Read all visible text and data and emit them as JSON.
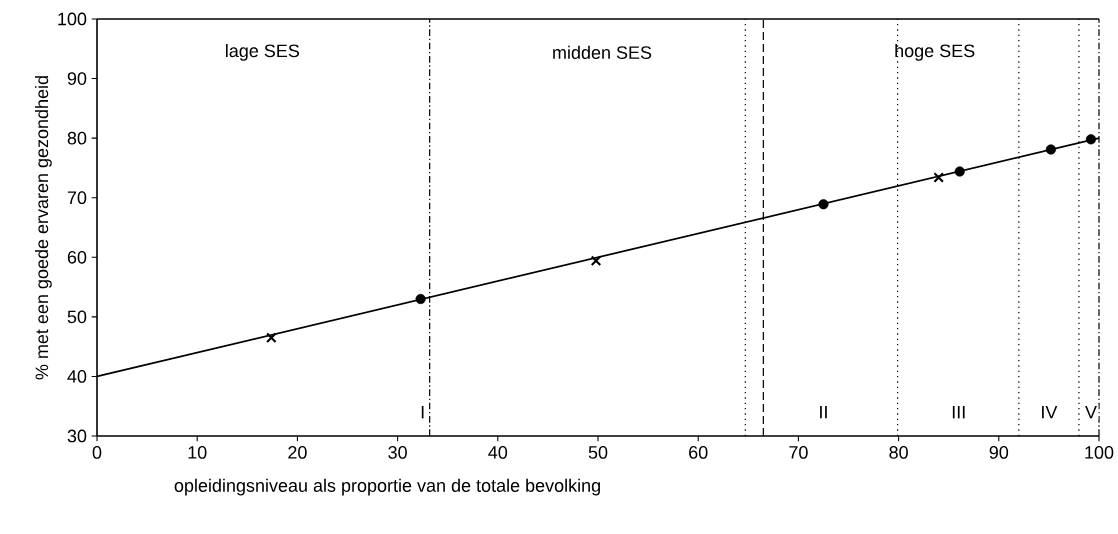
{
  "chart_data": {
    "type": "scatter",
    "xlabel": "opleidingsniveau als proportie van de totale bevolking",
    "ylabel": "% met een goede ervaren gezondheid",
    "xlim": [
      0,
      100
    ],
    "ylim": [
      30,
      100
    ],
    "xticks": [
      0,
      10,
      20,
      30,
      40,
      50,
      60,
      70,
      80,
      90,
      100
    ],
    "yticks": [
      30,
      40,
      50,
      60,
      70,
      80,
      90,
      100
    ],
    "grid": false,
    "series": [
      {
        "type": "line",
        "color": "#000000",
        "marker": "none",
        "line_style": "solid",
        "x": [
          0,
          100
        ],
        "values": [
          40,
          80
        ]
      },
      {
        "color": "#000000",
        "marker": "circle",
        "x": [
          32.3,
          72.5,
          86.1,
          95.2,
          99.2
        ],
        "values": [
          53.0,
          68.9,
          74.4,
          78.1,
          79.8
        ]
      },
      {
        "color": "#000000",
        "marker": "cross",
        "x": [
          17.4,
          49.8,
          84.0
        ],
        "values": [
          46.5,
          59.4,
          73.4
        ]
      }
    ],
    "ref_lines": [
      {
        "axis": "x",
        "value": 33.2,
        "line_style": "dashdot"
      },
      {
        "axis": "x",
        "value": 64.7,
        "line_style": "dotted"
      },
      {
        "axis": "x",
        "value": 66.5,
        "line_style": "dashed"
      },
      {
        "axis": "x",
        "value": 79.9,
        "line_style": "dotted"
      },
      {
        "axis": "x",
        "value": 92,
        "line_style": "dotted"
      },
      {
        "axis": "x",
        "value": 98,
        "line_style": "dotted"
      }
    ],
    "annotations": [
      "lage SES",
      "midden SES",
      "hoge SES",
      {
        "text": "I",
        "x": 32.5,
        "y": 34
      },
      {
        "text": "II",
        "x": 72.5,
        "y": 34
      },
      {
        "text": "III",
        "x": 86,
        "y": 34
      },
      {
        "text": "IV",
        "x": 95,
        "y": 34
      },
      {
        "text": "V",
        "x": 99.2,
        "y": 34
      }
    ]
  }
}
